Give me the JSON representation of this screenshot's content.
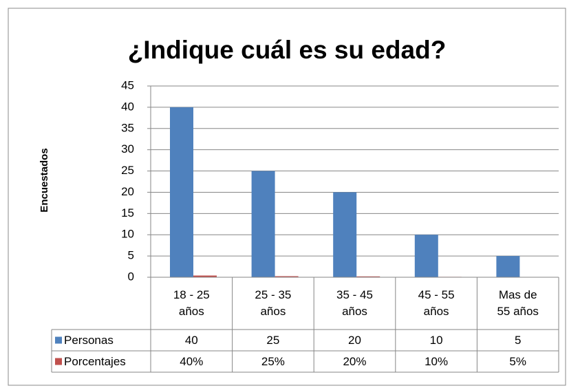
{
  "chart_data": {
    "type": "bar",
    "title": "¿Indique cuál es su edad?",
    "y_label": "Encuestados",
    "categories": [
      "18 - 25 años",
      "25 - 35 años",
      "35 - 45 años",
      "45 - 55 años",
      "Mas de 55 años"
    ],
    "series": [
      {
        "name": "Personas",
        "color": "#4f81bd",
        "values": [
          40,
          25,
          20,
          10,
          5
        ]
      },
      {
        "name": "Porcentajes",
        "color": "#c0504d",
        "values": [
          0.4,
          0.25,
          0.2,
          0.1,
          0.05
        ],
        "value_labels": [
          "40%",
          "25%",
          "20%",
          "10%",
          "5%"
        ]
      }
    ],
    "ylim": [
      0,
      45
    ],
    "yticks": [
      0,
      5,
      10,
      15,
      20,
      25,
      30,
      35,
      40,
      45
    ],
    "grid": true,
    "data_table": true
  }
}
